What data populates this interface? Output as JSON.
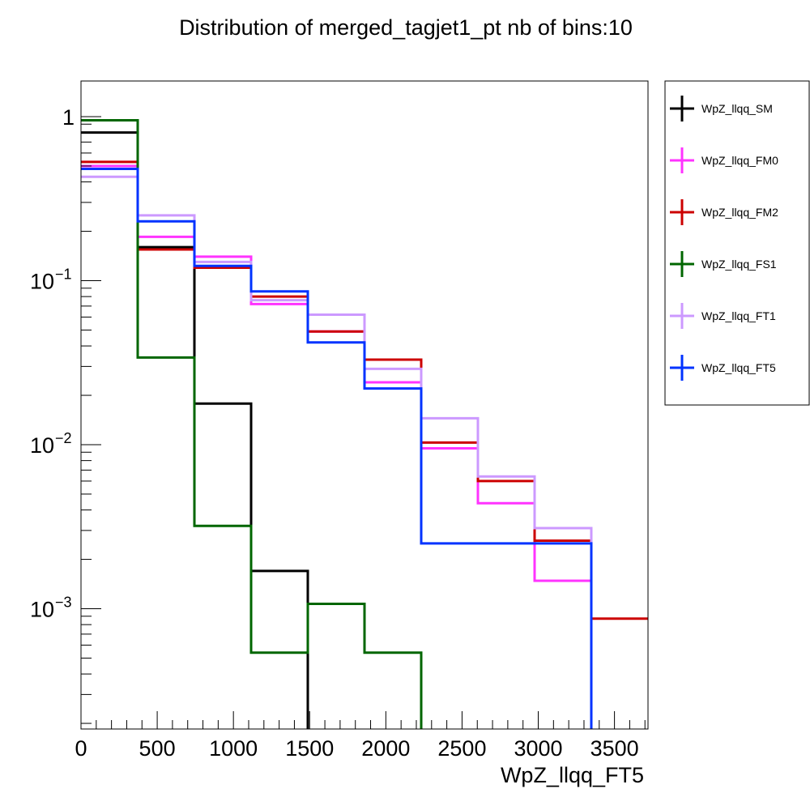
{
  "chart_data": {
    "type": "line",
    "style": "step-histogram",
    "title": "Distribution of merged_tagjet1_pt nb of bins:10",
    "xlabel": "WpZ_llqq_FT5",
    "ylabel": "",
    "x_scale": "linear",
    "y_scale": "log",
    "xlim": [
      0,
      3720
    ],
    "ylim": [
      0.000175,
      1.5
    ],
    "grid": false,
    "legend_placement": "right-outside",
    "bin_edges": [
      0,
      372,
      744,
      1116,
      1488,
      1860,
      2232,
      2604,
      2976,
      3348,
      3720
    ],
    "x_ticks": [
      0,
      500,
      1000,
      1500,
      2000,
      2500,
      3000,
      3500
    ],
    "x_tick_labels": [
      "0",
      "500",
      "1000",
      "1500",
      "2000",
      "2500",
      "3000",
      "3500"
    ],
    "y_tick_labels": [
      {
        "value": 1,
        "base": "1",
        "exp": ""
      },
      {
        "value": 0.1,
        "base": "10",
        "exp": "−1"
      },
      {
        "value": 0.01,
        "base": "10",
        "exp": "−2"
      },
      {
        "value": 0.001,
        "base": "10",
        "exp": "−3"
      }
    ],
    "series": [
      {
        "name": "WpZ_llqq_SM",
        "color": "#000000",
        "values": [
          0.8,
          0.16,
          0.0178,
          0.0017,
          0,
          0,
          0,
          0,
          0,
          0
        ]
      },
      {
        "name": "WpZ_llqq_FM0",
        "color": "#ff33ff",
        "values": [
          0.5,
          0.185,
          0.14,
          0.072,
          0.049,
          0.024,
          0.0095,
          0.0044,
          0.00148,
          0
        ]
      },
      {
        "name": "WpZ_llqq_FM2",
        "color": "#cc0000",
        "values": [
          0.53,
          0.155,
          0.12,
          0.08,
          0.049,
          0.033,
          0.0103,
          0.006,
          0.0026,
          0.00087
        ]
      },
      {
        "name": "WpZ_llqq_FS1",
        "color": "#006600",
        "values": [
          0.95,
          0.034,
          0.0032,
          0.00054,
          0.00107,
          0.00054,
          0,
          0,
          0,
          0
        ]
      },
      {
        "name": "WpZ_llqq_FT1",
        "color": "#cc99ff",
        "values": [
          0.43,
          0.25,
          0.13,
          0.076,
          0.062,
          0.029,
          0.0145,
          0.0064,
          0.0031,
          0
        ]
      },
      {
        "name": "WpZ_llqq_FT5",
        "color": "#0033ff",
        "values": [
          0.48,
          0.23,
          0.123,
          0.086,
          0.042,
          0.022,
          0.0025,
          0.0025,
          0.0025,
          0
        ]
      }
    ]
  }
}
